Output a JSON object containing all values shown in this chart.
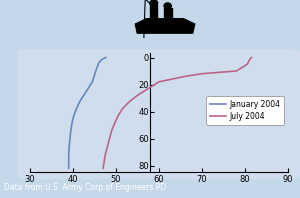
{
  "figsize": [
    3.0,
    1.98
  ],
  "dpi": 100,
  "xlim": [
    30,
    90
  ],
  "ylim": [
    85,
    -3
  ],
  "xticks": [
    30,
    40,
    50,
    60,
    70,
    80,
    90
  ],
  "yticks": [
    0,
    20,
    40,
    60,
    80
  ],
  "background_color": "#c5d8ea",
  "water_color": "#cfdded",
  "footer_text": "Data from U.S. Army Corp of Engineers PD",
  "footer_bg": "#000000",
  "footer_color": "#ffffff",
  "legend_entries": [
    "January 2004",
    "July 2004"
  ],
  "jan_color": "#6688bb",
  "jul_color": "#bb6688",
  "jan_x": [
    39.0,
    39.0,
    39.0,
    39.1,
    39.3,
    39.5,
    39.8,
    40.2,
    40.8,
    41.5,
    42.5,
    43.5,
    44.5,
    45.0,
    45.5,
    46.0,
    46.5,
    47.0,
    47.3,
    47.5,
    47.6
  ],
  "jan_y": [
    82,
    78,
    72,
    66,
    60,
    54,
    48,
    43,
    38,
    33,
    28,
    23,
    18,
    13,
    8,
    4,
    2,
    1,
    0.5,
    0.2,
    0
  ],
  "jul_x": [
    47.0,
    47.2,
    47.5,
    48.0,
    48.5,
    49.0,
    49.8,
    50.5,
    51.5,
    53.0,
    55.0,
    57.5,
    60.0,
    63.0,
    66.0,
    70.0,
    74.0,
    78.0,
    80.5,
    81.2,
    81.5
  ],
  "jul_y": [
    82,
    78,
    72,
    66,
    60,
    54,
    48,
    43,
    38,
    33,
    28,
    23,
    18,
    16,
    14,
    12,
    11,
    10,
    5,
    1,
    0
  ]
}
